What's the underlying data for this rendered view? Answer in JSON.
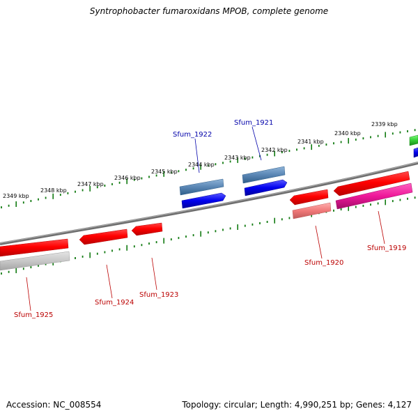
{
  "title": "Syntrophobacter fumaroxidans MPOB, complete genome",
  "footer": {
    "accession": "Accession: NC_008554",
    "summary": "Topology: circular; Length: 4,990,251 bp; Genes: 4,127"
  },
  "colors": {
    "backbone": "#808080",
    "tick": "#117a11",
    "forward_label": "#0000aa",
    "reverse_label": "#bb0000"
  },
  "scale_labels": [
    "2349 kbp",
    "2348 kbp",
    "2347 kbp",
    "2346 kbp",
    "2345 kbp",
    "2344 kbp",
    "2343 kbp",
    "2342 kbp",
    "2341 kbp",
    "2340 kbp",
    "2339 kbp"
  ],
  "gene_labels": {
    "sfum_1922": "Sfum_1922",
    "sfum_1921": "Sfum_1921",
    "sfum_1925": "Sfum_1925",
    "sfum_1924": "Sfum_1924",
    "sfum_1923": "Sfum_1923",
    "sfum_1920": "Sfum_1920",
    "sfum_1919": "Sfum_1919"
  }
}
